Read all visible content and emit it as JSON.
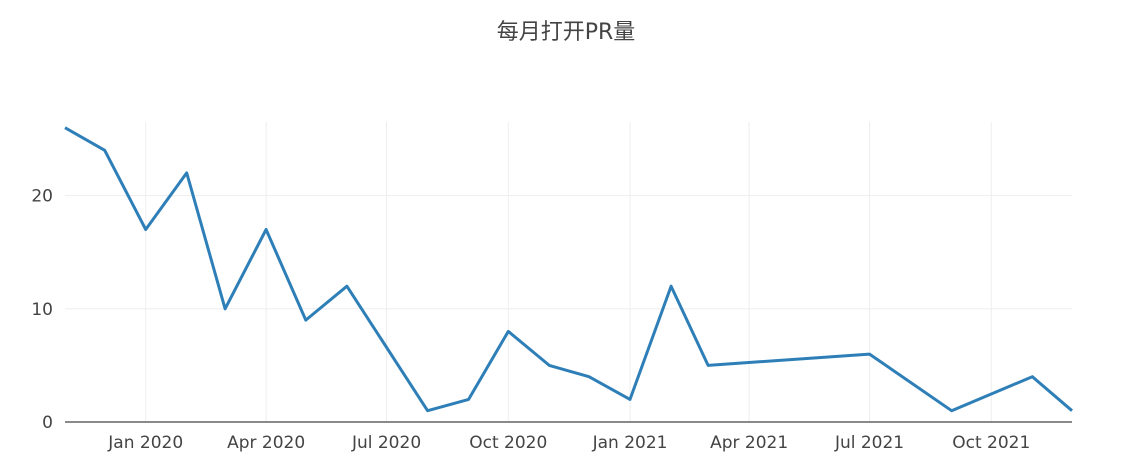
{
  "chart_data": {
    "type": "line",
    "title": "每月打开PR量",
    "xlabel": "",
    "ylabel": "",
    "ylim": [
      0,
      26.5
    ],
    "yticks": [
      0,
      10,
      20
    ],
    "xticks": [
      {
        "date": "2020-01-01",
        "label": "Jan 2020"
      },
      {
        "date": "2020-04-01",
        "label": "Apr 2020"
      },
      {
        "date": "2020-07-01",
        "label": "Jul 2020"
      },
      {
        "date": "2020-10-01",
        "label": "Oct 2020"
      },
      {
        "date": "2021-01-01",
        "label": "Jan 2021"
      },
      {
        "date": "2021-04-01",
        "label": "Apr 2021"
      },
      {
        "date": "2021-07-01",
        "label": "Jul 2021"
      },
      {
        "date": "2021-10-01",
        "label": "Oct 2021"
      }
    ],
    "xrange": [
      "2019-11-01",
      "2021-12-01"
    ],
    "grid": true,
    "series": [
      {
        "color": "#2e7fb8",
        "x": [
          "2019-11-01",
          "2019-12-01",
          "2020-01-01",
          "2020-02-01",
          "2020-03-01",
          "2020-04-01",
          "2020-05-01",
          "2020-06-01",
          "2020-08-01",
          "2020-09-01",
          "2020-10-01",
          "2020-11-01",
          "2020-12-01",
          "2021-01-01",
          "2021-02-01",
          "2021-03-01",
          "2021-07-01",
          "2021-09-01",
          "2021-11-01",
          "2021-12-01"
        ],
        "y": [
          26,
          24,
          17,
          22,
          10,
          17,
          9,
          12,
          1,
          2,
          8,
          5,
          4,
          2,
          12,
          5,
          6,
          1,
          4,
          1
        ]
      }
    ]
  }
}
